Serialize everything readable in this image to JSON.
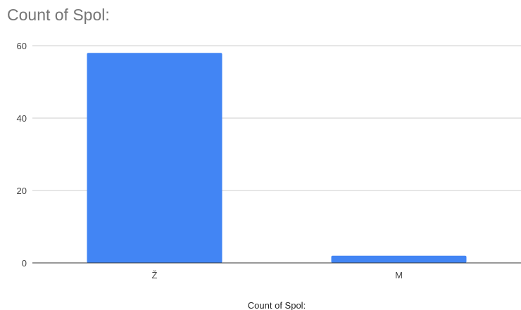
{
  "chart_data": {
    "type": "bar",
    "title": "Count of Spol:",
    "categories": [
      "Ž",
      "M"
    ],
    "values": [
      58,
      2
    ],
    "xlabel": "Count of Spol:",
    "ylabel": "",
    "ylim": [
      0,
      60
    ],
    "yticks": [
      0,
      20,
      40,
      60
    ],
    "grid": true,
    "bar_color": "#4285f4"
  }
}
